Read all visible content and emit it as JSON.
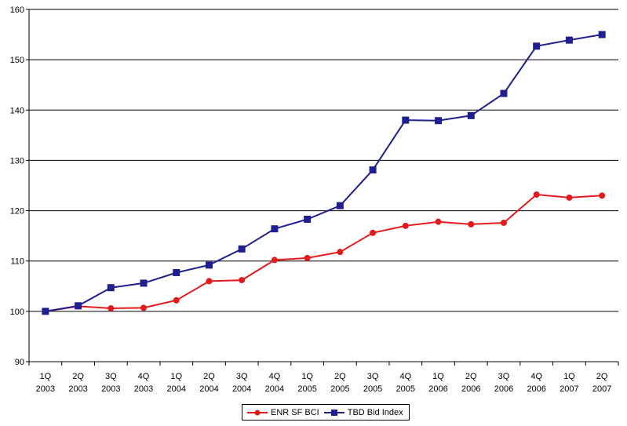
{
  "chart_data": {
    "type": "line",
    "categories": [
      [
        "1Q",
        "2003"
      ],
      [
        "2Q",
        "2003"
      ],
      [
        "3Q",
        "2003"
      ],
      [
        "4Q",
        "2003"
      ],
      [
        "1Q",
        "2004"
      ],
      [
        "2Q",
        "2004"
      ],
      [
        "3Q",
        "2004"
      ],
      [
        "4Q",
        "2004"
      ],
      [
        "1Q",
        "2005"
      ],
      [
        "2Q",
        "2005"
      ],
      [
        "3Q",
        "2005"
      ],
      [
        "4Q",
        "2005"
      ],
      [
        "1Q",
        "2006"
      ],
      [
        "2Q",
        "2006"
      ],
      [
        "3Q",
        "2006"
      ],
      [
        "4Q",
        "2006"
      ],
      [
        "1Q",
        "2007"
      ],
      [
        "2Q",
        "2007"
      ]
    ],
    "series": [
      {
        "name": "ENR SF BCI",
        "color": "#e31a1c",
        "marker": "circle",
        "values": [
          100,
          101,
          100.6,
          100.7,
          102.2,
          106,
          106.2,
          110.2,
          110.6,
          111.8,
          115.6,
          117,
          117.8,
          117.3,
          117.6,
          123.2,
          122.6,
          123
        ]
      },
      {
        "name": "TBD Bid Index",
        "color": "#1f1f8f",
        "marker": "square",
        "values": [
          100,
          101.1,
          104.7,
          105.6,
          107.7,
          109.2,
          112.4,
          116.4,
          118.3,
          121,
          128.1,
          138,
          137.9,
          138.9,
          143.3,
          152.7,
          153.9,
          155
        ]
      }
    ],
    "yticks": [
      "90",
      "100",
      "110",
      "120",
      "130",
      "140",
      "150",
      "160"
    ],
    "ylim": [
      90,
      160
    ],
    "grid": true,
    "legend_position": "bottom-center",
    "title": "",
    "xlabel": "",
    "ylabel": ""
  }
}
